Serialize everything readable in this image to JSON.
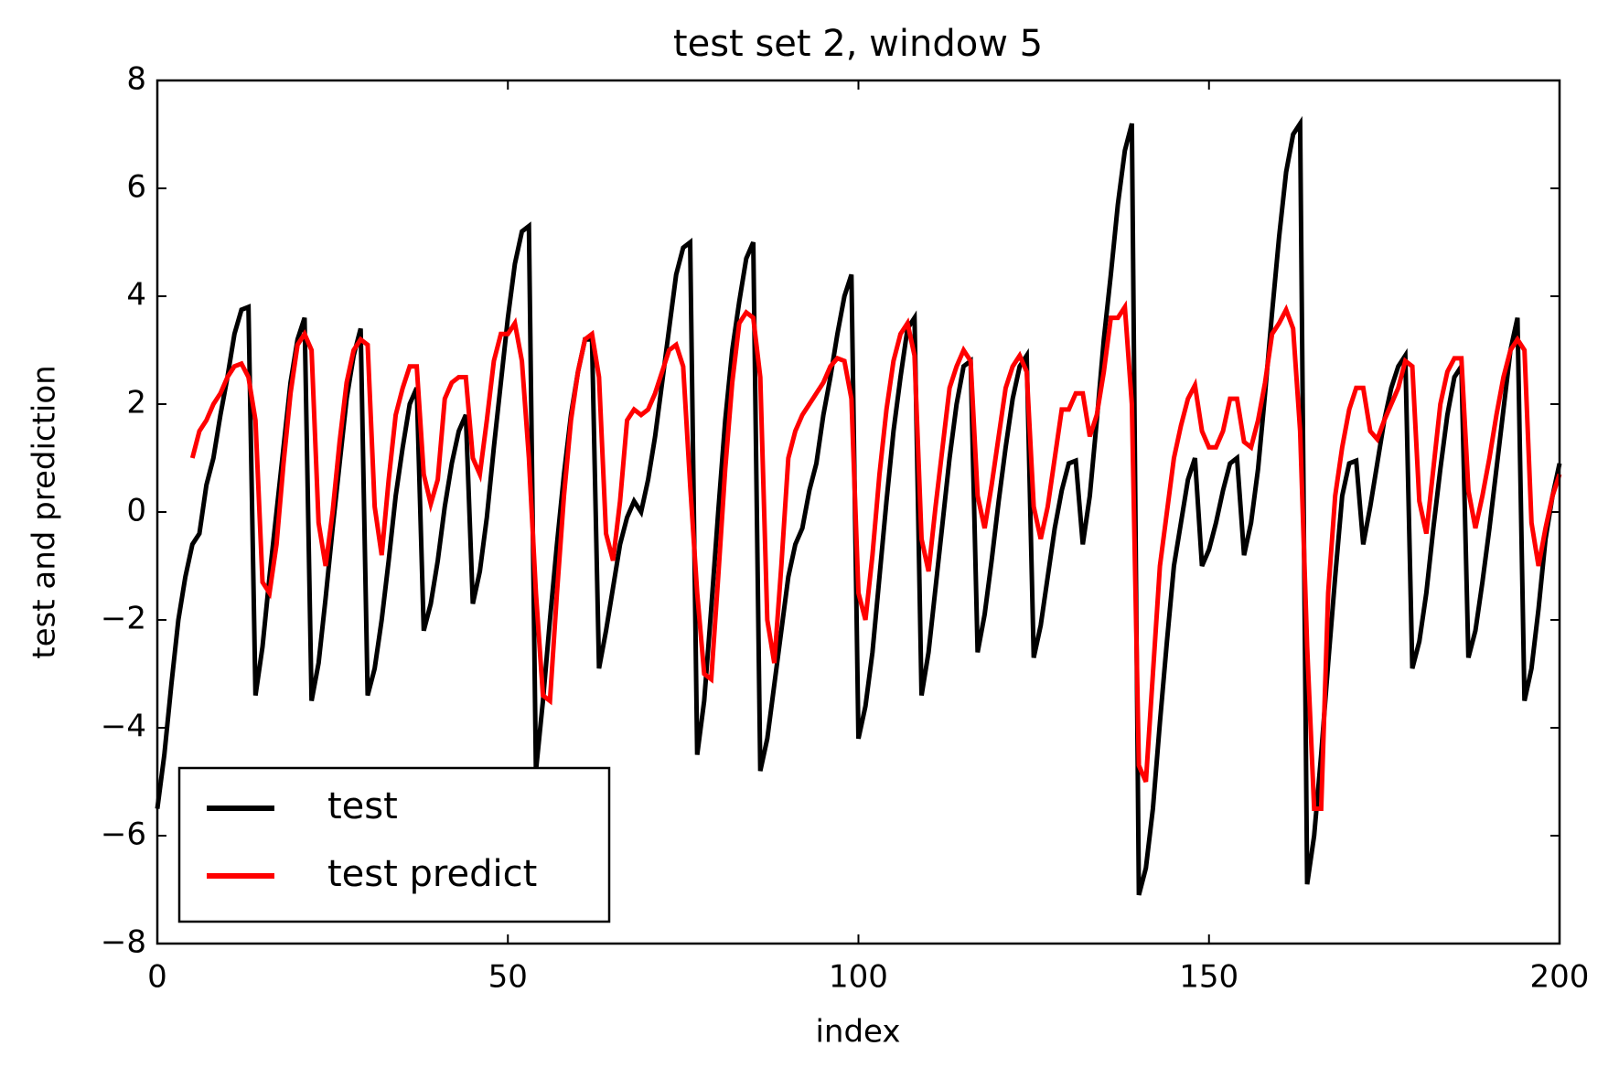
{
  "chart_data": {
    "type": "line",
    "title": "test set 2, window 5",
    "xlabel": "index",
    "ylabel": "test and prediction",
    "x": [
      0,
      1,
      2,
      3,
      4,
      5,
      6,
      7,
      8,
      9,
      10,
      11,
      12,
      13,
      14,
      15,
      16,
      17,
      18,
      19,
      20,
      21,
      22,
      23,
      24,
      25,
      26,
      27,
      28,
      29,
      30,
      31,
      32,
      33,
      34,
      35,
      36,
      37,
      38,
      39,
      40,
      41,
      42,
      43,
      44,
      45,
      46,
      47,
      48,
      49,
      50,
      51,
      52,
      53,
      54,
      55,
      56,
      57,
      58,
      59,
      60,
      61,
      62,
      63,
      64,
      65,
      66,
      67,
      68,
      69,
      70,
      71,
      72,
      73,
      74,
      75,
      76,
      77,
      78,
      79,
      80,
      81,
      82,
      83,
      84,
      85,
      86,
      87,
      88,
      89,
      90,
      91,
      92,
      93,
      94,
      95,
      96,
      97,
      98,
      99,
      100,
      101,
      102,
      103,
      104,
      105,
      106,
      107,
      108,
      109,
      110,
      111,
      112,
      113,
      114,
      115,
      116,
      117,
      118,
      119,
      120,
      121,
      122,
      123,
      124,
      125,
      126,
      127,
      128,
      129,
      130,
      131,
      132,
      133,
      134,
      135,
      136,
      137,
      138,
      139,
      140,
      141,
      142,
      143,
      144,
      145,
      146,
      147,
      148,
      149,
      150,
      151,
      152,
      153,
      154,
      155,
      156,
      157,
      158,
      159,
      160,
      161,
      162,
      163,
      164,
      165,
      166,
      167,
      168,
      169,
      170,
      171,
      172,
      173,
      174,
      175,
      176,
      177,
      178,
      179,
      180,
      181,
      182,
      183,
      184,
      185,
      186,
      187,
      188,
      189,
      190,
      191,
      192,
      193,
      194,
      195,
      196,
      197,
      198,
      199,
      200
    ],
    "series": [
      {
        "name": "test",
        "color": "#000000",
        "values": [
          -5.5,
          -4.5,
          -3.2,
          -2,
          -1.2,
          -0.6,
          -0.4,
          0.5,
          1.0,
          1.8,
          2.5,
          3.3,
          3.75,
          3.8,
          -3.4,
          -2.5,
          -1.2,
          0,
          1.2,
          2.4,
          3.2,
          3.6,
          -3.5,
          -2.8,
          -1.6,
          -0.3,
          0.9,
          2.1,
          2.9,
          3.4,
          -3.4,
          -2.9,
          -2,
          -0.9,
          0.3,
          1.2,
          2,
          2.3,
          -2.2,
          -1.7,
          -0.9,
          0.1,
          0.9,
          1.5,
          1.8,
          -1.7,
          -1.1,
          -0.1,
          1.2,
          2.4,
          3.6,
          4.6,
          5.2,
          5.3,
          -4.8,
          -3.5,
          -2,
          -0.6,
          0.7,
          1.8,
          2.6,
          3.2,
          3.2,
          -2.9,
          -2.2,
          -1.4,
          -0.6,
          -0.1,
          0.2,
          0,
          0.6,
          1.4,
          2.4,
          3.4,
          4.4,
          4.9,
          5.0,
          -4.5,
          -3.5,
          -1.8,
          0,
          1.7,
          3.0,
          3.9,
          4.7,
          5.0,
          -4.8,
          -4.2,
          -3.2,
          -2.2,
          -1.2,
          -0.6,
          -0.3,
          0.4,
          0.9,
          1.8,
          2.5,
          3.3,
          4.0,
          4.4,
          -4.2,
          -3.6,
          -2.6,
          -1.2,
          0.2,
          1.5,
          2.5,
          3.4,
          3.6,
          -3.4,
          -2.6,
          -1.4,
          -0.2,
          1.0,
          2.0,
          2.7,
          2.8,
          -2.6,
          -1.9,
          -0.9,
          0.2,
          1.2,
          2.1,
          2.7,
          2.9,
          -2.7,
          -2.1,
          -1.2,
          -0.3,
          0.4,
          0.9,
          0.95,
          -0.6,
          0.3,
          1.7,
          3.2,
          4.4,
          5.7,
          6.7,
          7.2,
          -7.1,
          -6.6,
          -5.5,
          -3.9,
          -2.4,
          -1,
          -0.2,
          0.6,
          1.0,
          -1.0,
          -0.7,
          -0.2,
          0.4,
          0.9,
          1.0,
          -0.8,
          -0.2,
          0.8,
          2.2,
          3.7,
          5.1,
          6.3,
          7.0,
          7.2,
          -6.9,
          -6.0,
          -4.5,
          -2.8,
          -1.2,
          0.3,
          0.9,
          0.95,
          -0.6,
          0.1,
          0.9,
          1.7,
          2.3,
          2.7,
          2.9,
          -2.9,
          -2.4,
          -1.5,
          -0.3,
          0.8,
          1.8,
          2.5,
          2.7,
          -2.7,
          -2.2,
          -1.3,
          -0.3,
          0.8,
          1.9,
          3.0,
          3.6,
          -3.5,
          -2.9,
          -1.8,
          -0.5,
          0.3,
          0.9
        ]
      },
      {
        "name": "test predict",
        "color": "#ff0000",
        "values": [
          null,
          null,
          null,
          null,
          null,
          1.0,
          1.5,
          1.7,
          2.0,
          2.2,
          2.5,
          2.7,
          2.75,
          2.5,
          1.7,
          -1.3,
          -1.5,
          -0.6,
          0.9,
          2.2,
          3.1,
          3.3,
          3.0,
          -0.2,
          -1.0,
          0,
          1.3,
          2.4,
          3.0,
          3.2,
          3.1,
          0.1,
          -0.8,
          0.6,
          1.8,
          2.3,
          2.7,
          2.7,
          0.7,
          0.15,
          0.6,
          2.1,
          2.4,
          2.5,
          2.5,
          1.0,
          0.7,
          1.7,
          2.8,
          3.3,
          3.3,
          3.5,
          2.8,
          1.0,
          -1.5,
          -3.4,
          -3.5,
          -1.5,
          0.3,
          1.7,
          2.6,
          3.2,
          3.3,
          2.5,
          -0.4,
          -0.9,
          0.2,
          1.7,
          1.9,
          1.8,
          1.9,
          2.2,
          2.6,
          3.0,
          3.1,
          2.7,
          0.5,
          -1.5,
          -3.0,
          -3.1,
          -1.2,
          0.8,
          2.4,
          3.5,
          3.7,
          3.6,
          2.5,
          -2.0,
          -2.8,
          -1.0,
          1.0,
          1.5,
          1.8,
          2.0,
          2.2,
          2.4,
          2.7,
          2.85,
          2.8,
          2.1,
          -1.5,
          -2.0,
          -0.8,
          0.7,
          1.9,
          2.8,
          3.3,
          3.5,
          2.9,
          -0.5,
          -1.1,
          0.1,
          1.2,
          2.3,
          2.7,
          3.0,
          2.8,
          0.3,
          -0.3,
          0.5,
          1.4,
          2.3,
          2.7,
          2.9,
          2.6,
          0.1,
          -0.5,
          0.1,
          1.0,
          1.9,
          1.9,
          2.2,
          2.2,
          1.4,
          1.8,
          2.6,
          3.6,
          3.6,
          3.8,
          2.0,
          -4.7,
          -5.0,
          -3,
          -1,
          0,
          1.0,
          1.6,
          2.1,
          2.35,
          1.5,
          1.2,
          1.2,
          1.5,
          2.1,
          2.1,
          1.3,
          1.2,
          1.7,
          2.4,
          3.3,
          3.5,
          3.75,
          3.4,
          1.5,
          -2.5,
          -5.5,
          -5.5,
          -1.5,
          0.3,
          1.2,
          1.9,
          2.3,
          2.3,
          1.5,
          1.35,
          1.7,
          2.0,
          2.3,
          2.8,
          2.7,
          0.2,
          -0.4,
          0.8,
          2.0,
          2.6,
          2.85,
          2.85,
          0.4,
          -0.3,
          0.3,
          1.0,
          1.8,
          2.5,
          3.0,
          3.2,
          3.0,
          -0.2,
          -1.0,
          -0.3,
          0.3,
          0.7
        ]
      }
    ],
    "xlim": [
      0,
      200
    ],
    "xticks": [
      0,
      50,
      100,
      150,
      200
    ],
    "ylim": [
      -8,
      8
    ],
    "yticks": [
      {
        "value": -8,
        "label": "−8"
      },
      {
        "value": -6,
        "label": "−6"
      },
      {
        "value": -4,
        "label": "−4"
      },
      {
        "value": -2,
        "label": "−2"
      },
      0,
      2,
      4,
      6,
      8
    ],
    "grid": false,
    "legend": "lower left"
  }
}
